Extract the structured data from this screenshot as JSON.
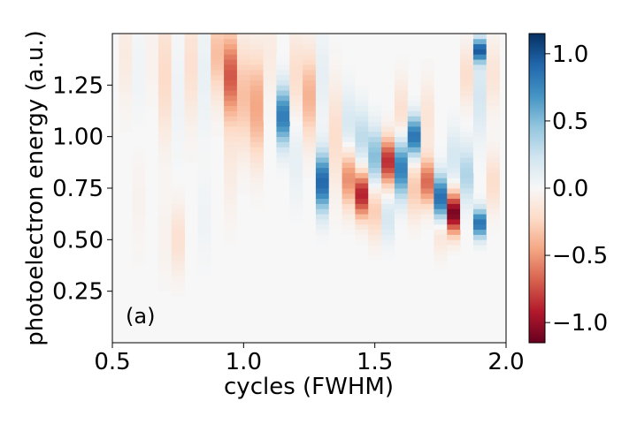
{
  "chart_data": {
    "type": "heatmap",
    "panel_label": "(a)",
    "xlabel": "cycles (FWHM)",
    "ylabel": "photoelectron energy (a.u.)",
    "xlim": [
      0.5,
      2.0
    ],
    "ylim": [
      0.0,
      1.5
    ],
    "x_ticks": [
      {
        "value": 0.5,
        "label": "0.5"
      },
      {
        "value": 1.0,
        "label": "1.0"
      },
      {
        "value": 1.5,
        "label": "1.5"
      },
      {
        "value": 2.0,
        "label": "2.0"
      }
    ],
    "y_ticks": [
      {
        "value": 0.25,
        "label": "0.25"
      },
      {
        "value": 0.5,
        "label": "0.50"
      },
      {
        "value": 0.75,
        "label": "0.75"
      },
      {
        "value": 1.0,
        "label": "1.00"
      },
      {
        "value": 1.25,
        "label": "1.25"
      }
    ],
    "colorbar": {
      "colormap": "RdBu",
      "range": [
        -1.15,
        1.15
      ],
      "ticks": [
        {
          "value": 1.0,
          "label": "1.0"
        },
        {
          "value": 0.5,
          "label": "0.5"
        },
        {
          "value": 0.0,
          "label": "0.0"
        },
        {
          "value": -0.5,
          "label": "−0.5"
        },
        {
          "value": -1.0,
          "label": "−1.0"
        }
      ]
    },
    "grid": false,
    "columns": [
      {
        "x": 0.55,
        "blobs": [
          {
            "e": 1.4,
            "s": 0.18,
            "a": -0.1
          }
        ]
      },
      {
        "x": 0.6,
        "blobs": [
          {
            "e": 1.3,
            "s": 0.2,
            "a": 0.04
          },
          {
            "e": 0.7,
            "s": 0.2,
            "a": -0.04
          }
        ]
      },
      {
        "x": 0.65,
        "blobs": [
          {
            "e": 1.4,
            "s": 0.15,
            "a": -0.05
          }
        ]
      },
      {
        "x": 0.7,
        "blobs": [
          {
            "e": 1.3,
            "s": 0.22,
            "a": -0.22
          },
          {
            "e": 0.5,
            "s": 0.15,
            "a": -0.05
          }
        ]
      },
      {
        "x": 0.75,
        "blobs": [
          {
            "e": 0.5,
            "s": 0.12,
            "a": -0.18
          },
          {
            "e": 1.2,
            "s": 0.2,
            "a": 0.05
          }
        ]
      },
      {
        "x": 0.8,
        "blobs": [
          {
            "e": 1.35,
            "s": 0.2,
            "a": -0.18
          }
        ]
      },
      {
        "x": 0.85,
        "blobs": [
          {
            "e": 1.3,
            "s": 0.2,
            "a": 0.08
          },
          {
            "e": 0.6,
            "s": 0.15,
            "a": 0.05
          }
        ]
      },
      {
        "x": 0.9,
        "blobs": [
          {
            "e": 1.4,
            "s": 0.15,
            "a": -0.35
          }
        ]
      },
      {
        "x": 0.95,
        "blobs": [
          {
            "e": 1.3,
            "s": 0.15,
            "a": -0.7
          },
          {
            "e": 0.9,
            "s": 0.2,
            "a": -0.1
          }
        ]
      },
      {
        "x": 1.0,
        "blobs": [
          {
            "e": 1.2,
            "s": 0.18,
            "a": -0.35
          }
        ]
      },
      {
        "x": 1.05,
        "blobs": [
          {
            "e": 1.15,
            "s": 0.18,
            "a": -0.45
          }
        ]
      },
      {
        "x": 1.1,
        "blobs": [
          {
            "e": 1.4,
            "s": 0.15,
            "a": -0.1
          }
        ]
      },
      {
        "x": 1.15,
        "blobs": [
          {
            "e": 1.1,
            "s": 0.1,
            "a": 0.8
          }
        ]
      },
      {
        "x": 1.2,
        "blobs": [
          {
            "e": 1.3,
            "s": 0.15,
            "a": -0.2
          },
          {
            "e": 0.9,
            "s": 0.15,
            "a": 0.1
          }
        ]
      },
      {
        "x": 1.25,
        "blobs": [
          {
            "e": 1.2,
            "s": 0.15,
            "a": -0.4
          }
        ]
      },
      {
        "x": 1.3,
        "blobs": [
          {
            "e": 0.78,
            "s": 0.1,
            "a": 0.9
          },
          {
            "e": 1.3,
            "s": 0.15,
            "a": 0.1
          }
        ]
      },
      {
        "x": 1.35,
        "blobs": [
          {
            "e": 1.0,
            "s": 0.18,
            "a": -0.2
          }
        ]
      },
      {
        "x": 1.4,
        "blobs": [
          {
            "e": 0.8,
            "s": 0.1,
            "a": -0.55
          },
          {
            "e": 1.05,
            "s": 0.12,
            "a": 0.2
          }
        ]
      },
      {
        "x": 1.45,
        "blobs": [
          {
            "e": 0.72,
            "s": 0.08,
            "a": -0.9
          },
          {
            "e": 1.0,
            "s": 0.1,
            "a": 0.3
          }
        ]
      },
      {
        "x": 1.5,
        "blobs": [
          {
            "e": 0.9,
            "s": 0.1,
            "a": 0.5
          },
          {
            "e": 0.65,
            "s": 0.1,
            "a": -0.3
          }
        ]
      },
      {
        "x": 1.55,
        "blobs": [
          {
            "e": 0.88,
            "s": 0.08,
            "a": -0.85
          },
          {
            "e": 0.6,
            "s": 0.08,
            "a": 0.2
          }
        ]
      },
      {
        "x": 1.6,
        "blobs": [
          {
            "e": 0.85,
            "s": 0.1,
            "a": 0.8
          },
          {
            "e": 1.1,
            "s": 0.12,
            "a": -0.2
          }
        ]
      },
      {
        "x": 1.65,
        "blobs": [
          {
            "e": 1.0,
            "s": 0.07,
            "a": 0.85
          },
          {
            "e": 0.75,
            "s": 0.1,
            "a": -0.3
          }
        ]
      },
      {
        "x": 1.7,
        "blobs": [
          {
            "e": 0.78,
            "s": 0.08,
            "a": -0.65
          },
          {
            "e": 1.1,
            "s": 0.12,
            "a": -0.15
          }
        ]
      },
      {
        "x": 1.75,
        "blobs": [
          {
            "e": 0.7,
            "s": 0.08,
            "a": 0.9
          },
          {
            "e": 0.55,
            "s": 0.08,
            "a": -0.2
          }
        ]
      },
      {
        "x": 1.8,
        "blobs": [
          {
            "e": 0.63,
            "s": 0.07,
            "a": -1.1
          },
          {
            "e": 0.9,
            "s": 0.1,
            "a": 0.2
          }
        ]
      },
      {
        "x": 1.85,
        "blobs": [
          {
            "e": 0.82,
            "s": 0.1,
            "a": 0.35
          },
          {
            "e": 1.3,
            "s": 0.1,
            "a": -0.2
          }
        ]
      },
      {
        "x": 1.9,
        "blobs": [
          {
            "e": 0.58,
            "s": 0.05,
            "a": 0.85
          },
          {
            "e": 1.42,
            "s": 0.04,
            "a": 0.9
          },
          {
            "e": 1.2,
            "s": 0.15,
            "a": 0.2
          }
        ]
      },
      {
        "x": 1.95,
        "blobs": [
          {
            "e": 1.3,
            "s": 0.12,
            "a": -0.15
          },
          {
            "e": 0.78,
            "s": 0.1,
            "a": -0.2
          }
        ]
      }
    ]
  }
}
